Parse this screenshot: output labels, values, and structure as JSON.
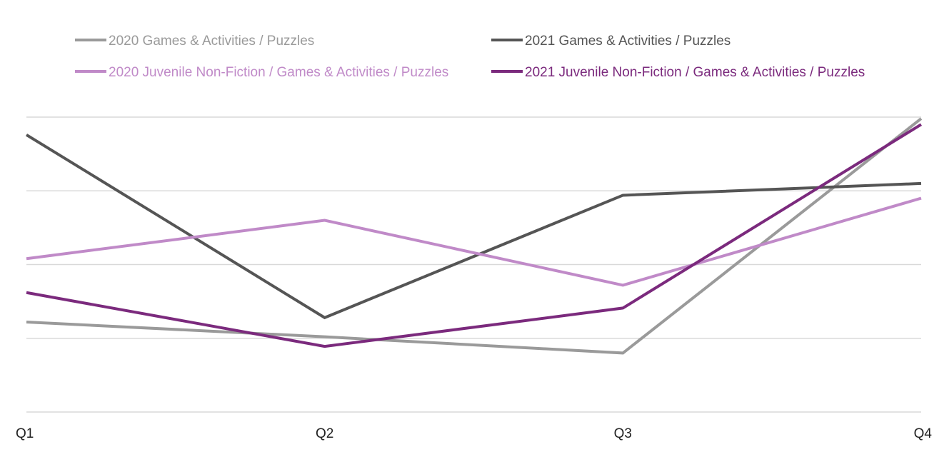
{
  "chart_data": {
    "type": "line",
    "categories": [
      "Q1",
      "Q2",
      "Q3",
      "Q4"
    ],
    "ylim": [
      0,
      4
    ],
    "yticks": [
      0,
      1,
      2,
      3,
      4
    ],
    "y_tick_labels_visible": false,
    "grid": "horizontal",
    "legend_position": "top",
    "series": [
      {
        "name": "2020 Games & Activities / Puzzles",
        "color": "#9a9a9a",
        "values": [
          1.22,
          1.02,
          0.8,
          3.98
        ]
      },
      {
        "name": "2021 Games & Activities / Puzzles",
        "color": "#555555",
        "values": [
          3.76,
          1.28,
          2.94,
          3.1
        ]
      },
      {
        "name": "2020 Juvenile Non-Fiction / Games & Activities / Puzzles",
        "color": "#c08ac8",
        "values": [
          2.08,
          2.6,
          1.72,
          2.9
        ]
      },
      {
        "name": "2021 Juvenile Non-Fiction / Games & Activities / Puzzles",
        "color": "#7b2a7d",
        "values": [
          1.62,
          0.89,
          1.41,
          3.9
        ]
      }
    ]
  }
}
